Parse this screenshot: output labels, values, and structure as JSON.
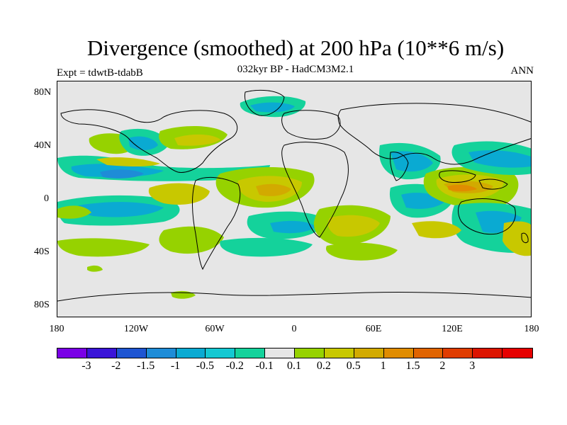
{
  "title": "Divergence (smoothed) at 200 hPa (10**6 m/s)",
  "subtitle": "032kyr BP - HadCM3M2.1",
  "expt_label": "Expt = tdwtB-tdabB",
  "season": "ANN",
  "lat_labels": [
    "80N",
    "40N",
    "0",
    "40S",
    "80S"
  ],
  "lon_labels": [
    "180",
    "120W",
    "60W",
    "0",
    "60E",
    "120E",
    "180"
  ],
  "colorbar": {
    "colors": [
      "#7a00e6",
      "#3a14d8",
      "#1e55d2",
      "#1e8cd7",
      "#0aaad2",
      "#14c8d2",
      "#14d29b",
      "#e6e6e6",
      "#96d200",
      "#c8c800",
      "#d2aa00",
      "#e08c00",
      "#e06400",
      "#e03c00",
      "#dc1400",
      "#e60000"
    ],
    "levels": [
      "-3",
      "-2",
      "-1.5",
      "-1",
      "-0.5",
      "-0.2",
      "-0.1",
      "0.1",
      "0.2",
      "0.5",
      "1",
      "1.5",
      "2",
      "3"
    ]
  }
}
